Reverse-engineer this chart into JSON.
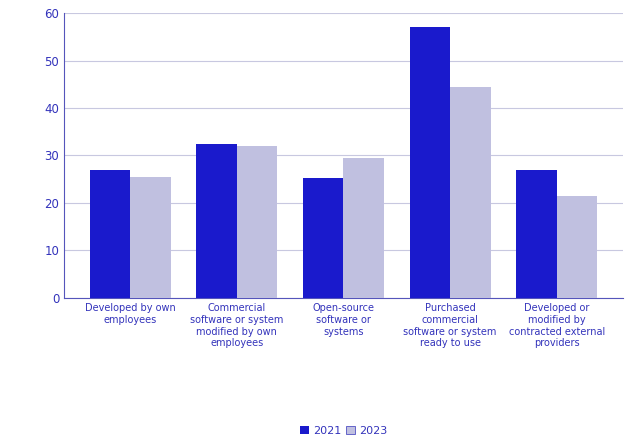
{
  "categories": [
    "Developed by own\nemployees",
    "Commercial\nsoftware or system\nmodified by own\nemployees",
    "Open-source\nsoftware or\nsystems",
    "Purchased\ncommercial\nsoftware or system\nready to use",
    "Developed or\nmodified by\ncontracted external\nproviders"
  ],
  "values_2021": [
    27,
    32.5,
    25.2,
    57,
    27
  ],
  "values_2023": [
    25.5,
    32,
    29.5,
    44.5,
    21.5
  ],
  "color_2021": "#1a1acc",
  "color_2023": "#c0c0e0",
  "ylim": [
    0,
    60
  ],
  "yticks": [
    0,
    10,
    20,
    30,
    40,
    50,
    60
  ],
  "legend_labels": [
    "2021",
    "2023"
  ],
  "bar_width": 0.38,
  "grid_color": "#c8c8e0",
  "axis_color": "#5555bb",
  "tick_color": "#3333bb",
  "label_color": "#3333bb",
  "legend_edge_color": "#3333bb"
}
